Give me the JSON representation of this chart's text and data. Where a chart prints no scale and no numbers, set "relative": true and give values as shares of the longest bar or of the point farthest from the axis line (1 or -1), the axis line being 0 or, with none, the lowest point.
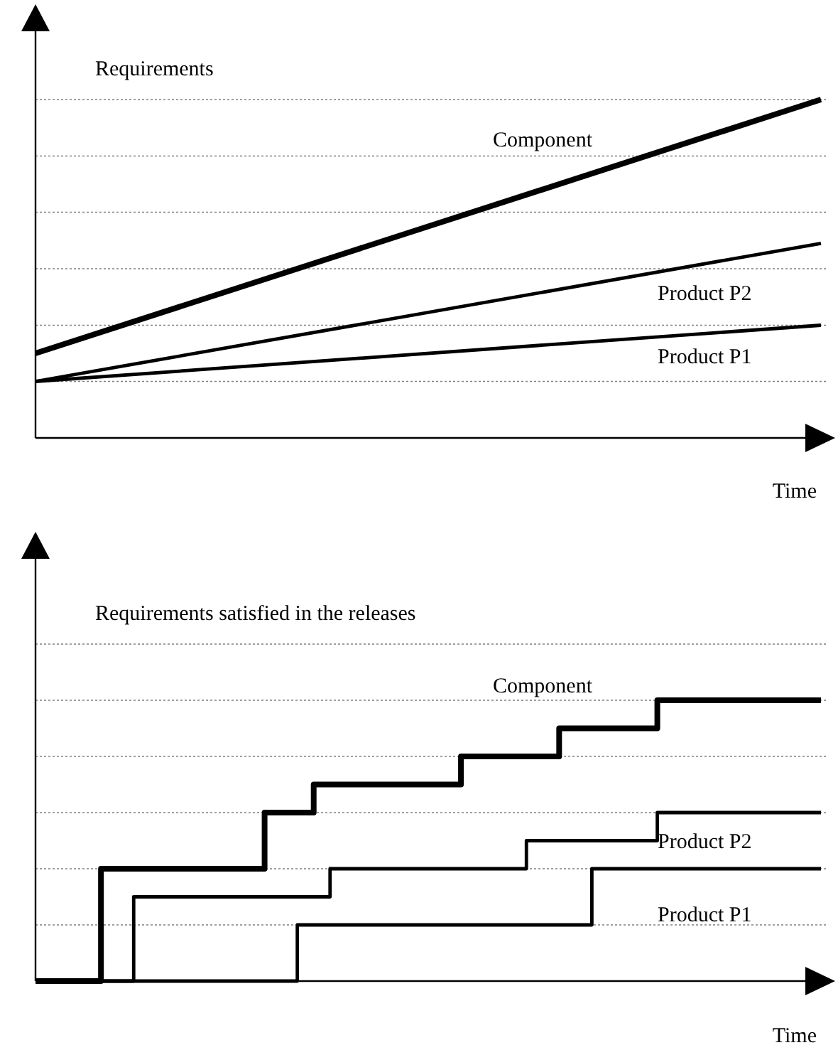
{
  "chart_data": [
    {
      "type": "line",
      "relative": true,
      "ylabel": "Requirements",
      "xlabel": "Time",
      "categories": [
        null,
        null
      ],
      "series": [
        {
          "name": "Component",
          "color": "#000000",
          "values": [
            0.25,
            1
          ]
        },
        {
          "name": "Product P2",
          "color": "#000000",
          "values": [
            0.167,
            0.575
          ]
        },
        {
          "name": "Product P1",
          "color": "#000000",
          "values": [
            0.167,
            0.333
          ]
        }
      ],
      "ref_lines": [
        {
          "axis": "y",
          "value": 0.167,
          "color": "#808080",
          "line_style": "dotted"
        },
        {
          "axis": "y",
          "value": 0.333,
          "color": "#808080",
          "line_style": "dotted"
        },
        {
          "axis": "y",
          "value": 0.5,
          "color": "#808080",
          "line_style": "dotted"
        },
        {
          "axis": "y",
          "value": 0.667,
          "color": "#808080",
          "line_style": "dotted"
        },
        {
          "axis": "y",
          "value": 0.833,
          "color": "#808080",
          "line_style": "dotted"
        },
        {
          "axis": "y",
          "value": 1,
          "color": "#808080",
          "line_style": "dotted"
        }
      ]
    },
    {
      "type": "step",
      "relative": true,
      "ylabel": "Requirements satisfied in the releases",
      "xlabel": "Time",
      "categories": [
        null,
        null,
        null,
        null,
        null,
        null,
        null,
        null,
        null,
        null,
        null,
        null,
        null,
        null,
        null,
        null,
        null,
        null,
        null,
        null,
        null,
        null,
        null,
        null,
        null,
        null,
        null,
        null,
        null,
        null,
        null,
        null,
        null,
        null,
        null,
        null,
        null,
        null,
        null,
        null,
        null,
        null,
        null,
        null,
        null,
        null,
        null,
        null,
        null
      ],
      "series": [
        {
          "name": "Component",
          "color": "#000000",
          "values": [
            0,
            0,
            0,
            0,
            0.4,
            0.4,
            0.4,
            0.4,
            0.4,
            0.4,
            0.4,
            0.4,
            0.4,
            0.4,
            0.6,
            0.6,
            0.6,
            0.7,
            0.7,
            0.7,
            0.7,
            0.7,
            0.7,
            0.7,
            0.7,
            0.7,
            0.8,
            0.8,
            0.8,
            0.8,
            0.8,
            0.8,
            0.9,
            0.9,
            0.9,
            0.9,
            0.9,
            0.9,
            1,
            1,
            1,
            1,
            1,
            1,
            1,
            1,
            1,
            1,
            1
          ]
        },
        {
          "name": "Product P2",
          "color": "#000000",
          "values": [
            0,
            0,
            0,
            0,
            0,
            0,
            0.3,
            0.3,
            0.3,
            0.3,
            0.3,
            0.3,
            0.3,
            0.3,
            0.3,
            0.3,
            0.3,
            0.3,
            0.4,
            0.4,
            0.4,
            0.4,
            0.4,
            0.4,
            0.4,
            0.4,
            0.4,
            0.4,
            0.4,
            0.4,
            0.5,
            0.5,
            0.5,
            0.5,
            0.5,
            0.5,
            0.5,
            0.5,
            0.6,
            0.6,
            0.6,
            0.6,
            0.6,
            0.6,
            0.6,
            0.6,
            0.6,
            0.6,
            0.6
          ]
        },
        {
          "name": "Product P1",
          "color": "#000000",
          "values": [
            0,
            0,
            0,
            0,
            0,
            0,
            0,
            0,
            0,
            0,
            0,
            0,
            0,
            0,
            0,
            0,
            0.2,
            0.2,
            0.2,
            0.2,
            0.2,
            0.2,
            0.2,
            0.2,
            0.2,
            0.2,
            0.2,
            0.2,
            0.2,
            0.2,
            0.2,
            0.2,
            0.2,
            0.2,
            0.4,
            0.4,
            0.4,
            0.4,
            0.4,
            0.4,
            0.4,
            0.4,
            0.4,
            0.4,
            0.4,
            0.4,
            0.4,
            0.4,
            0.4
          ]
        }
      ],
      "ref_lines": [
        {
          "axis": "y",
          "value": 0.2,
          "color": "#808080",
          "line_style": "dotted"
        },
        {
          "axis": "y",
          "value": 0.4,
          "color": "#808080",
          "line_style": "dotted"
        },
        {
          "axis": "y",
          "value": 0.6,
          "color": "#808080",
          "line_style": "dotted"
        },
        {
          "axis": "y",
          "value": 0.8,
          "color": "#808080",
          "line_style": "dotted"
        },
        {
          "axis": "y",
          "value": 1,
          "color": "#808080",
          "line_style": "dotted"
        },
        {
          "axis": "y",
          "value": 1.2,
          "color": "#808080",
          "line_style": "dotted"
        }
      ]
    }
  ]
}
